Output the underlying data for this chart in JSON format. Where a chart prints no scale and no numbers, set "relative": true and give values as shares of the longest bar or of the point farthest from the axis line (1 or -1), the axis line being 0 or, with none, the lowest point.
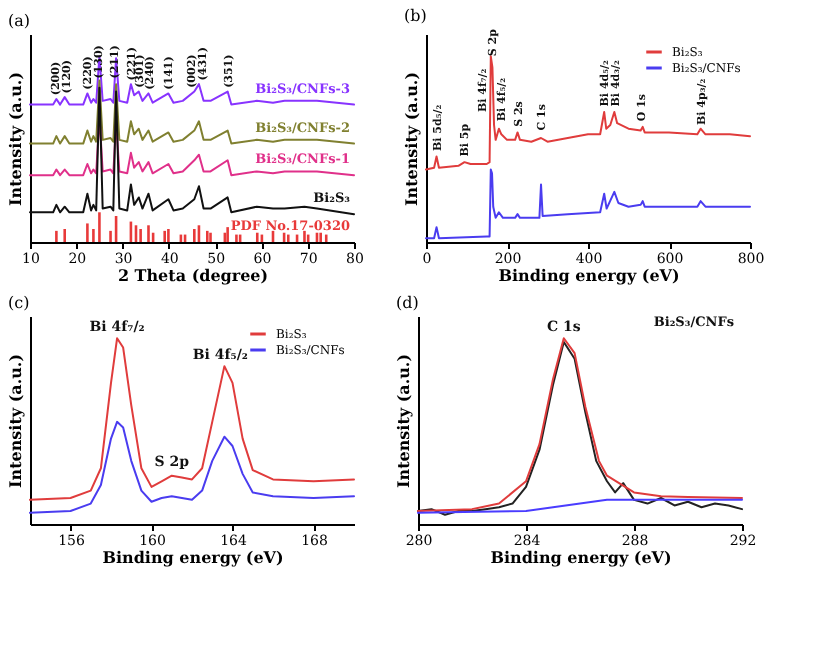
{
  "chart_data": [
    {
      "type": "line",
      "title": "(a)",
      "xlabel": "2 Theta (degree)",
      "ylabel": "Intensity (a.u.)",
      "relative": true,
      "xlim": [
        10,
        80
      ],
      "xticks": [
        10,
        20,
        30,
        40,
        50,
        60,
        70,
        80
      ],
      "x": [
        10,
        15,
        15.7,
        16.5,
        17.5,
        18.5,
        21.5,
        22.4,
        23.2,
        23.7,
        24.3,
        25.0,
        25.7,
        27.4,
        28.0,
        28.6,
        29.3,
        31.0,
        31.8,
        32.5,
        33.5,
        34.3,
        35.6,
        36.5,
        39.9,
        41,
        43,
        45.5,
        46.5,
        47.5,
        49,
        52.7,
        53.5,
        59,
        62.5,
        65,
        69.3,
        72,
        80
      ],
      "series": [
        {
          "name": "Bi₂S₃/CNFs-3",
          "color": "#8833ff",
          "values": [
            0.74,
            0.74,
            0.77,
            0.74,
            0.78,
            0.74,
            0.74,
            0.8,
            0.75,
            0.77,
            0.75,
            1.0,
            0.76,
            0.77,
            0.75,
            0.99,
            0.76,
            0.75,
            0.85,
            0.79,
            0.81,
            0.76,
            0.8,
            0.75,
            0.8,
            0.75,
            0.76,
            0.81,
            0.85,
            0.76,
            0.76,
            0.81,
            0.74,
            0.76,
            0.75,
            0.76,
            0.76,
            0.76,
            0.74
          ]
        },
        {
          "name": "Bi₂S₃/CNFs-2",
          "color": "#808030",
          "values": [
            0.53,
            0.53,
            0.57,
            0.53,
            0.57,
            0.53,
            0.53,
            0.6,
            0.54,
            0.57,
            0.54,
            0.87,
            0.55,
            0.56,
            0.54,
            0.85,
            0.55,
            0.54,
            0.65,
            0.58,
            0.61,
            0.55,
            0.6,
            0.54,
            0.59,
            0.54,
            0.55,
            0.6,
            0.65,
            0.55,
            0.55,
            0.6,
            0.53,
            0.55,
            0.54,
            0.55,
            0.55,
            0.55,
            0.53
          ]
        },
        {
          "name": "Bi₂S₃/CNFs-1",
          "color": "#e0308a",
          "values": [
            0.36,
            0.36,
            0.39,
            0.36,
            0.39,
            0.36,
            0.36,
            0.42,
            0.37,
            0.39,
            0.37,
            0.68,
            0.38,
            0.39,
            0.37,
            0.65,
            0.38,
            0.37,
            0.48,
            0.4,
            0.43,
            0.38,
            0.43,
            0.37,
            0.42,
            0.37,
            0.38,
            0.44,
            0.47,
            0.38,
            0.38,
            0.44,
            0.36,
            0.38,
            0.37,
            0.38,
            0.38,
            0.38,
            0.36
          ]
        },
        {
          "name": "Bi₂S₃",
          "color": "#111111",
          "values": [
            0.16,
            0.16,
            0.2,
            0.16,
            0.19,
            0.16,
            0.16,
            0.26,
            0.17,
            0.2,
            0.17,
            0.83,
            0.18,
            0.19,
            0.17,
            0.81,
            0.18,
            0.17,
            0.31,
            0.2,
            0.24,
            0.18,
            0.26,
            0.17,
            0.23,
            0.17,
            0.18,
            0.23,
            0.3,
            0.18,
            0.18,
            0.24,
            0.16,
            0.19,
            0.18,
            0.18,
            0.19,
            0.18,
            0.15
          ]
        },
        {
          "name": "PDF No.17-0320",
          "type": "bar",
          "color": "#e83a3a",
          "x": [
            15.7,
            17.5,
            22.4,
            23.7,
            25.0,
            27.4,
            28.6,
            31.8,
            32.9,
            33.9,
            35.6,
            36.6,
            39.1,
            39.9,
            42.6,
            43.5,
            45.5,
            46.5,
            48.3,
            49.0,
            52.1,
            52.7,
            54.6,
            55.4,
            59.1,
            60.1,
            62.5,
            64.9,
            65.8,
            67.7,
            69.3,
            70.1,
            72.0,
            72.8,
            74.0
          ],
          "values": [
            0.06,
            0.07,
            0.1,
            0.07,
            0.16,
            0.06,
            0.14,
            0.11,
            0.09,
            0.07,
            0.09,
            0.05,
            0.06,
            0.07,
            0.04,
            0.04,
            0.07,
            0.09,
            0.06,
            0.05,
            0.05,
            0.08,
            0.04,
            0.04,
            0.05,
            0.04,
            0.06,
            0.05,
            0.04,
            0.04,
            0.06,
            0.04,
            0.05,
            0.05,
            0.04
          ]
        }
      ],
      "annotations": [
        {
          "text": "(200)",
          "x": 15.3,
          "y": 0.79
        },
        {
          "text": "(120)",
          "x": 17.8,
          "y": 0.8
        },
        {
          "text": "(220)",
          "x": 22.4,
          "y": 0.82
        },
        {
          "text": "(130)",
          "x": 24.6,
          "y": 0.88
        },
        {
          "text": "(211)",
          "x": 28.2,
          "y": 0.88
        },
        {
          "text": "(221)",
          "x": 31.8,
          "y": 0.87
        },
        {
          "text": "(301)",
          "x": 33.6,
          "y": 0.83
        },
        {
          "text": "(240)",
          "x": 35.8,
          "y": 0.82
        },
        {
          "text": "(141)",
          "x": 39.9,
          "y": 0.82
        },
        {
          "text": "(002)",
          "x": 44.8,
          "y": 0.83
        },
        {
          "text": "(431)",
          "x": 47.2,
          "y": 0.87
        },
        {
          "text": "(351)",
          "x": 52.7,
          "y": 0.83
        }
      ]
    },
    {
      "type": "line",
      "title": "(b)",
      "xlabel": "Binding energy (eV)",
      "ylabel": "Intensity (a.u.)",
      "relative": true,
      "legend": "top right",
      "xlim": [
        0,
        800
      ],
      "xticks": [
        0,
        200,
        400,
        600,
        800
      ],
      "series": [
        {
          "name": "Bi₂S₃",
          "color": "#e03c3c",
          "x": [
            0,
            20,
            26,
            32,
            80,
            95,
            110,
            150,
            157,
            160,
            164,
            168,
            172,
            180,
            186,
            200,
            220,
            226,
            232,
            260,
            284,
            300,
            350,
            400,
            430,
            440,
            445,
            455,
            465,
            472,
            500,
            530,
            535,
            540,
            600,
            670,
            678,
            690,
            750,
            800
          ],
          "values": [
            0.39,
            0.4,
            0.46,
            0.4,
            0.41,
            0.43,
            0.42,
            0.42,
            0.43,
            1.0,
            0.94,
            0.63,
            0.55,
            0.61,
            0.58,
            0.55,
            0.55,
            0.59,
            0.55,
            0.54,
            0.56,
            0.54,
            0.56,
            0.58,
            0.58,
            0.7,
            0.61,
            0.63,
            0.7,
            0.64,
            0.61,
            0.6,
            0.62,
            0.59,
            0.59,
            0.58,
            0.61,
            0.58,
            0.58,
            0.57
          ]
        },
        {
          "name": "Bi₂S₃/CNFs",
          "color": "#4a3cf0",
          "x": [
            0,
            20,
            26,
            32,
            150,
            157,
            160,
            163,
            166,
            172,
            180,
            190,
            220,
            226,
            232,
            280,
            284,
            288,
            350,
            430,
            440,
            446,
            465,
            475,
            500,
            530,
            535,
            540,
            670,
            678,
            690,
            800
          ],
          "values": [
            0.02,
            0.02,
            0.08,
            0.02,
            0.03,
            0.03,
            0.39,
            0.37,
            0.19,
            0.13,
            0.16,
            0.13,
            0.13,
            0.15,
            0.13,
            0.13,
            0.31,
            0.14,
            0.15,
            0.16,
            0.26,
            0.18,
            0.27,
            0.21,
            0.19,
            0.2,
            0.22,
            0.19,
            0.19,
            0.22,
            0.19,
            0.19
          ]
        }
      ],
      "annotations": [
        {
          "text": "Bi 5d₅/₂",
          "x": 26,
          "y": 0.49
        },
        {
          "text": "Bi 5p",
          "x": 95,
          "y": 0.46
        },
        {
          "text": "Bi 4f₇/₂",
          "x": 138,
          "y": 0.7
        },
        {
          "text": "S 2p",
          "x": 162,
          "y": 1.0
        },
        {
          "text": "Bi 4f₅/₂",
          "x": 184,
          "y": 0.65
        },
        {
          "text": "S 2s",
          "x": 226,
          "y": 0.62
        },
        {
          "text": "C 1s",
          "x": 284,
          "y": 0.6
        },
        {
          "text": "Bi 4d₅/₂",
          "x": 440,
          "y": 0.73
        },
        {
          "text": "Bi 4d₃/₂",
          "x": 466,
          "y": 0.73
        },
        {
          "text": "O 1s",
          "x": 530,
          "y": 0.65
        },
        {
          "text": "Bi 4p₃/₂",
          "x": 680,
          "y": 0.63
        }
      ]
    },
    {
      "type": "line",
      "title": "(c)",
      "xlabel": "Binding energy (eV)",
      "ylabel": "Intensity (a.u.)",
      "relative": true,
      "legend": "top right",
      "xlim": [
        154,
        170
      ],
      "xticks": [
        156,
        160,
        164,
        168
      ],
      "x": [
        154,
        156,
        157,
        157.5,
        158,
        158.3,
        158.6,
        159,
        159.5,
        160,
        160.5,
        161,
        161.5,
        162,
        162.5,
        163,
        163.6,
        164,
        164.5,
        165,
        166,
        168,
        170
      ],
      "series": [
        {
          "name": "Bi₂S₃",
          "color": "#e03c3c",
          "values": [
            0.13,
            0.14,
            0.18,
            0.3,
            0.76,
            1.0,
            0.95,
            0.64,
            0.3,
            0.2,
            0.23,
            0.26,
            0.25,
            0.24,
            0.3,
            0.55,
            0.85,
            0.76,
            0.46,
            0.29,
            0.24,
            0.23,
            0.24
          ]
        },
        {
          "name": "Bi₂S₃/CNFs",
          "color": "#4a3cf0",
          "values": [
            0.06,
            0.07,
            0.11,
            0.21,
            0.46,
            0.55,
            0.52,
            0.34,
            0.18,
            0.12,
            0.14,
            0.15,
            0.14,
            0.13,
            0.18,
            0.34,
            0.47,
            0.42,
            0.27,
            0.17,
            0.15,
            0.14,
            0.15
          ]
        }
      ],
      "annotations": [
        {
          "text": "Bi 4f₇/₂",
          "x": 158.3,
          "y": 1.03
        },
        {
          "text": "S 2p",
          "x": 161,
          "y": 0.3
        },
        {
          "text": "Bi 4f₅/₂",
          "x": 163.4,
          "y": 0.88
        }
      ]
    },
    {
      "type": "line",
      "title": "(d)",
      "xlabel": "Binding energy (eV)",
      "ylabel": "Intensity (a.u.)",
      "relative": true,
      "xlim": [
        280,
        292
      ],
      "xticks": [
        280,
        284,
        288,
        292
      ],
      "series": [
        {
          "color": "#222222",
          "x": [
            280,
            280.5,
            281,
            281.5,
            282,
            282.5,
            283,
            283.5,
            284,
            284.5,
            285,
            285.4,
            285.8,
            286.2,
            286.6,
            287,
            287.3,
            287.6,
            288,
            288.5,
            289,
            289.5,
            290,
            290.5,
            291,
            291.5,
            292
          ],
          "values": [
            0.07,
            0.08,
            0.05,
            0.07,
            0.07,
            0.08,
            0.09,
            0.11,
            0.2,
            0.4,
            0.75,
            0.98,
            0.89,
            0.6,
            0.34,
            0.23,
            0.17,
            0.22,
            0.13,
            0.11,
            0.14,
            0.1,
            0.12,
            0.09,
            0.11,
            0.1,
            0.08
          ]
        },
        {
          "color": "#e03c3c",
          "x": [
            280,
            282,
            283,
            284,
            284.5,
            285,
            285.4,
            285.8,
            286.2,
            286.7,
            287,
            288,
            289,
            290,
            292
          ],
          "values": [
            0.07,
            0.08,
            0.11,
            0.23,
            0.43,
            0.78,
            1.0,
            0.92,
            0.63,
            0.34,
            0.26,
            0.17,
            0.15,
            0.145,
            0.14
          ]
        },
        {
          "color": "#4a3cff",
          "x": [
            280,
            284,
            285,
            286,
            287,
            288,
            292
          ],
          "values": [
            0.06,
            0.07,
            0.09,
            0.11,
            0.13,
            0.13,
            0.13
          ]
        }
      ],
      "annotations": [
        {
          "text": "C 1s",
          "x": 285.4,
          "y": 1.03
        },
        "Bi₂S₃/CNFs"
      ]
    }
  ]
}
